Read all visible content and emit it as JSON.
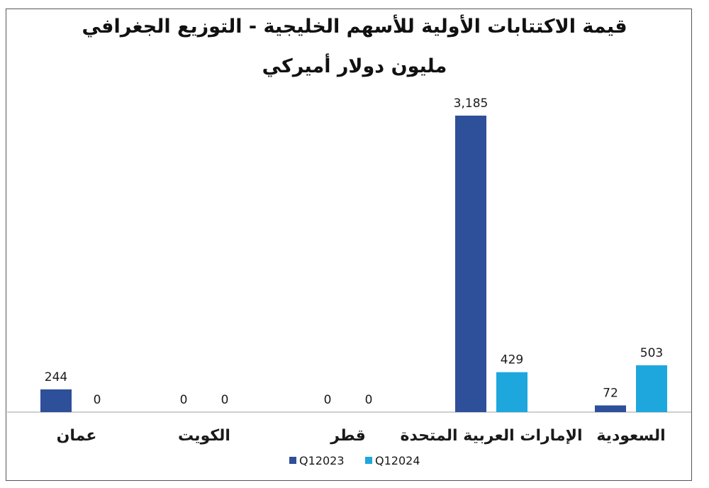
{
  "chart_data": {
    "type": "bar",
    "title": "قيمة الاكتتابات الأولية للأسهم الخليجية - التوزيع الجغرافي",
    "subtitle": "مليون دولار أميركي",
    "categories": [
      "عمان",
      "الكويت",
      "قطر",
      "الإمارات العربية المتحدة",
      "السعودية"
    ],
    "series": [
      {
        "name": "Q12023",
        "color": "#2e4f99",
        "values": [
          244,
          0,
          0,
          3185,
          72
        ]
      },
      {
        "name": "Q12024",
        "color": "#1ea7dd",
        "values": [
          0,
          0,
          0,
          429,
          503
        ]
      }
    ],
    "value_labels": [
      [
        "244",
        "0",
        "0",
        "3,185",
        "72"
      ],
      [
        "0",
        "0",
        "0",
        "429",
        "503"
      ]
    ],
    "ylim": [
      0,
      3185
    ],
    "grid": false,
    "legend_position": "bottom-center"
  }
}
